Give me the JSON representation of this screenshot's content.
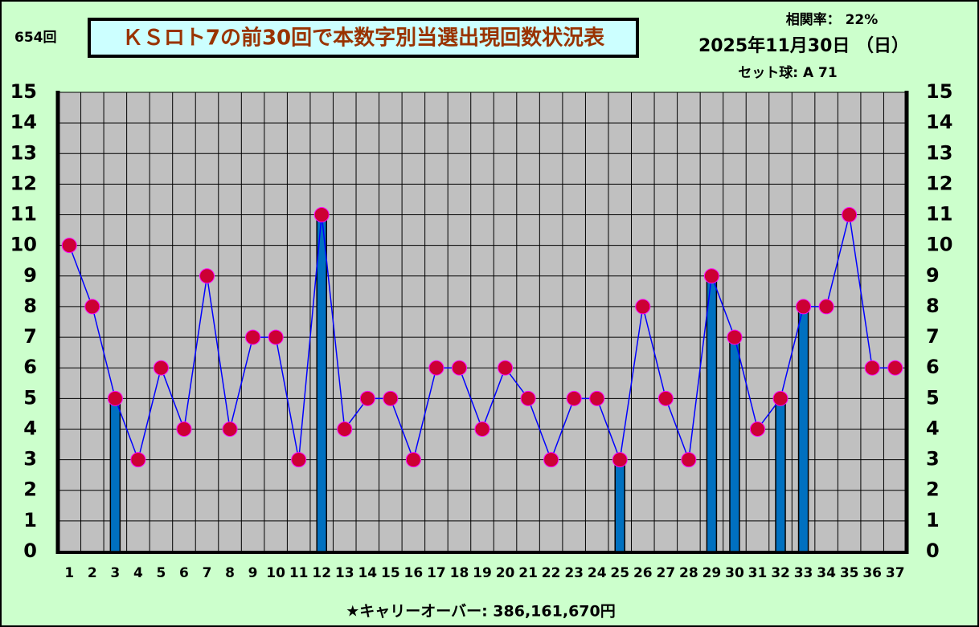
{
  "chart_data": {
    "type": "combo",
    "draw_number": "654回",
    "title": "ＫＳロト7の前30回で本数字別当選出現回数状況表",
    "correlation": "相関率：  22%",
    "date": "2025年11月30日 （日）",
    "set_ball": "セット球: A 71",
    "footer": "★キャリーオーバー: 386,161,670円",
    "categories": [
      "1",
      "2",
      "3",
      "4",
      "5",
      "6",
      "7",
      "8",
      "9",
      "10",
      "11",
      "12",
      "13",
      "14",
      "15",
      "16",
      "17",
      "18",
      "19",
      "20",
      "21",
      "22",
      "23",
      "24",
      "25",
      "26",
      "27",
      "28",
      "29",
      "30",
      "31",
      "32",
      "33",
      "34",
      "35",
      "36",
      "37"
    ],
    "series": [
      {
        "type": "bar",
        "color": "#0070c0",
        "values": [
          null,
          null,
          5,
          null,
          null,
          null,
          null,
          null,
          null,
          null,
          null,
          11,
          null,
          null,
          null,
          null,
          null,
          null,
          null,
          null,
          null,
          null,
          null,
          null,
          3,
          null,
          null,
          null,
          9,
          7,
          null,
          5,
          8,
          null,
          null,
          null,
          null
        ]
      },
      {
        "type": "line",
        "color": "#0000ff",
        "marker_color": "#cc0033",
        "values": [
          10,
          8,
          5,
          3,
          6,
          4,
          9,
          4,
          7,
          7,
          3,
          11,
          4,
          5,
          5,
          3,
          6,
          6,
          4,
          6,
          5,
          3,
          5,
          5,
          3,
          8,
          5,
          3,
          9,
          7,
          4,
          5,
          8,
          8,
          11,
          6,
          6
        ]
      }
    ],
    "ylim": [
      0,
      15
    ],
    "yticks": [
      0,
      1,
      2,
      3,
      4,
      5,
      6,
      7,
      8,
      9,
      10,
      11,
      12,
      13,
      14,
      15
    ],
    "grid": true,
    "background": "#ccffcc",
    "plot_color": "#c0c0c0"
  }
}
